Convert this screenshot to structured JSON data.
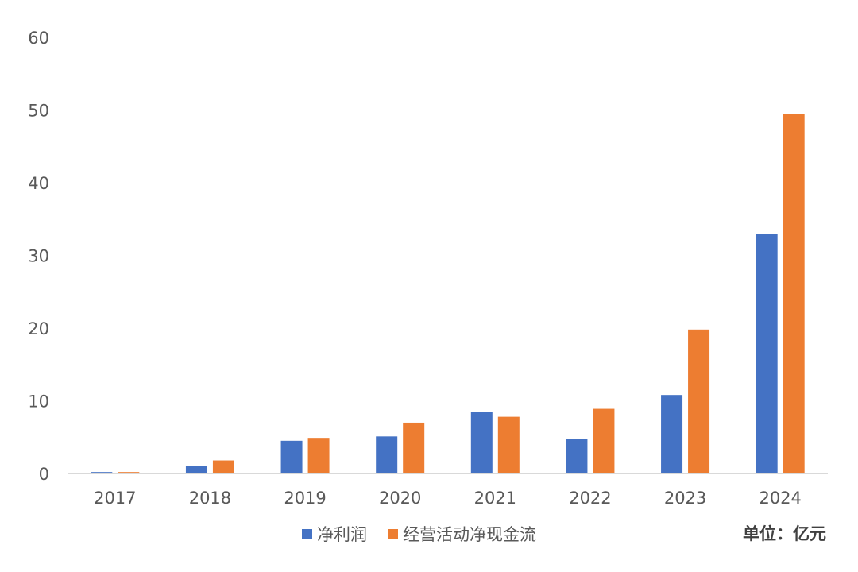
{
  "chart_data": {
    "type": "bar",
    "categories": [
      "2017",
      "2018",
      "2019",
      "2020",
      "2021",
      "2022",
      "2023",
      "2024"
    ],
    "series": [
      {
        "name": "净利润",
        "color": "#4472C4",
        "values": [
          0.2,
          1.0,
          4.5,
          5.1,
          8.5,
          4.7,
          10.8,
          33.0
        ]
      },
      {
        "name": "经营活动净现金流",
        "color": "#ED7D31",
        "values": [
          0.2,
          1.8,
          4.9,
          7.0,
          7.8,
          8.9,
          19.8,
          49.4
        ]
      }
    ],
    "yticks": [
      "0",
      "10",
      "20",
      "30",
      "40",
      "50",
      "60"
    ],
    "ylim": [
      0,
      60
    ],
    "grid": false,
    "legend_position": "bottom",
    "unit_label": "单位：亿元"
  }
}
